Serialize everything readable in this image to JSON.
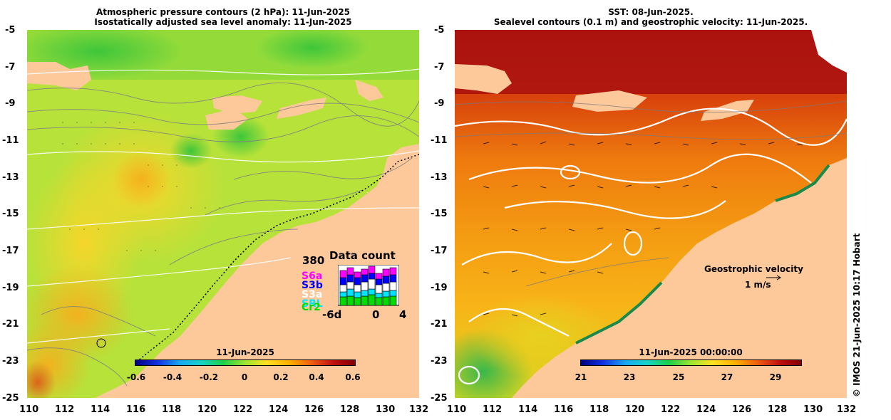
{
  "left_panel": {
    "title_line1": "Atmospheric pressure contours (2 hPa): 11-Jun-2025",
    "title_line2": "Isostatically adjusted sea level anomaly: 11-Jun-2025",
    "colorbar_title": "11-Jun-2025",
    "colorbar_ticks": [
      "-0.6",
      "-0.4",
      "-0.2",
      "0",
      "0.2",
      "0.4",
      "0.6"
    ],
    "colors": {
      "ocean": "#a8e23a",
      "land": "#fdc89a"
    }
  },
  "right_panel": {
    "title_line1": "SST: 08-Jun-2025.",
    "title_line2": "Sealevel contours (0.1 m) and geostrophic velocity: 11-Jun-2025.",
    "colorbar_title": "11-Jun-2025 00:00:00",
    "colorbar_ticks": [
      "21",
      "23",
      "25",
      "27",
      "29"
    ],
    "velocity_label": "Geostrophic velocity",
    "velocity_scale": "1 m/s",
    "colors": {
      "ocean": "#f08a10",
      "land": "#fdc89a"
    }
  },
  "axes": {
    "y_ticks": [
      "-5",
      "-7",
      "-9",
      "-11",
      "-13",
      "-15",
      "-17",
      "-19",
      "-21",
      "-23",
      "-25"
    ],
    "x_ticks": [
      "110",
      "112",
      "114",
      "116",
      "118",
      "120",
      "122",
      "124",
      "126",
      "128",
      "130",
      "132"
    ]
  },
  "data_count": {
    "title": "Data count",
    "max": "380",
    "x_start": "-6d",
    "x_mid": "0",
    "x_end": "4",
    "satellites": [
      {
        "name": "S6a",
        "color": "#ff00ff"
      },
      {
        "name": "S3b",
        "color": "#0000ff"
      },
      {
        "name": "S3a",
        "color": "#ffffff"
      },
      {
        "name": "SRL",
        "color": "#00e5ff"
      },
      {
        "name": "Cr2",
        "color": "#00dd00"
      }
    ]
  },
  "copyright": "© IMOS 21-Jun-2025 10:17 Hobart"
}
